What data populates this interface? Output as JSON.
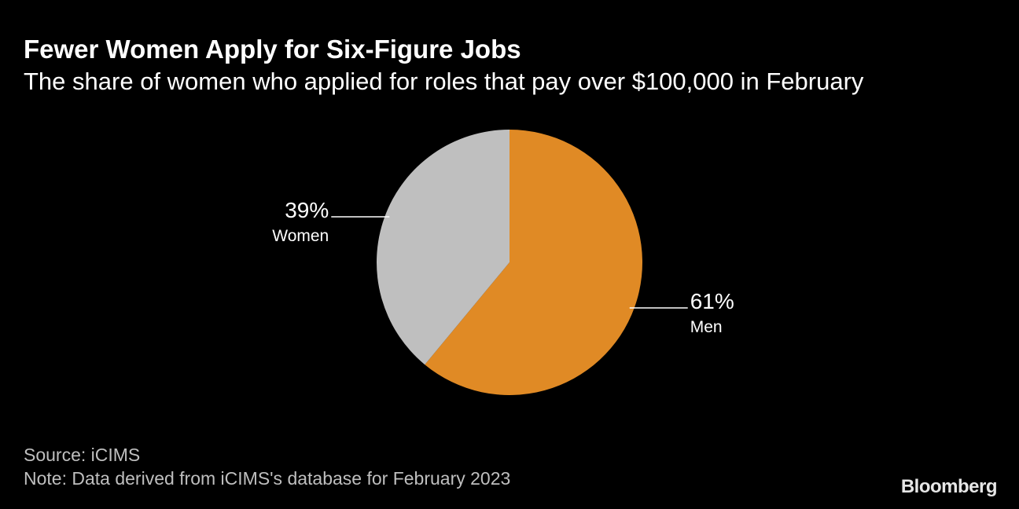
{
  "header": {
    "title": "Fewer Women Apply for Six-Figure Jobs",
    "subtitle": "The share of women who applied for roles that pay over $100,000 in February"
  },
  "chart_data": {
    "type": "pie",
    "title": "Fewer Women Apply for Six-Figure Jobs",
    "subtitle": "The share of women who applied for roles that pay over $100,000 in February",
    "start": "12 o'clock",
    "direction": "clockwise",
    "slices": [
      {
        "label": "Men",
        "value": 61,
        "value_label": "61%",
        "color": "#e08a25"
      },
      {
        "label": "Women",
        "value": 39,
        "value_label": "39%",
        "color": "#bfbfbf"
      }
    ]
  },
  "footer": {
    "source": "Source: iCIMS",
    "note": "Note: Data derived from iCIMS's database for February 2023",
    "brand": "Bloomberg"
  }
}
